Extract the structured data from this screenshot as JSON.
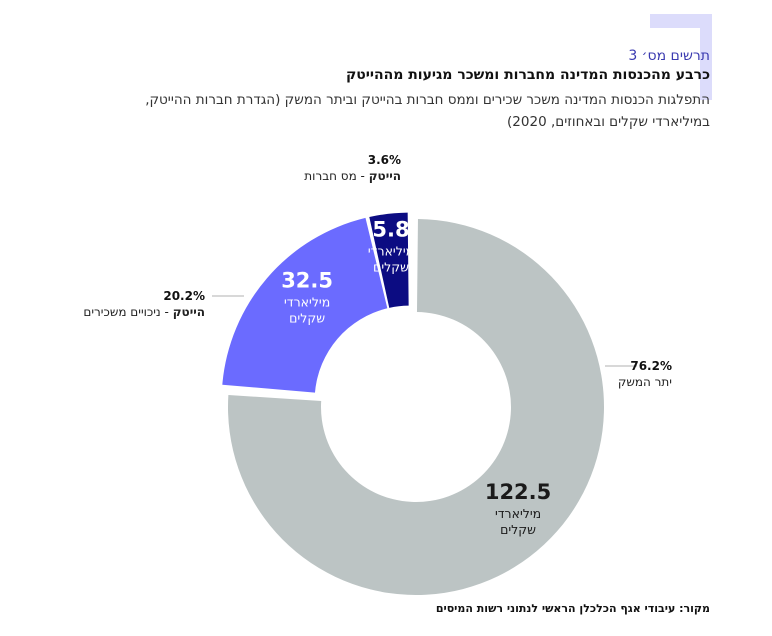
{
  "figure": {
    "number": "תרשים מס׳ 3",
    "title": "כרבע מהכנסות המדינה מחברות ומשכר מגיעות מההייטק",
    "subtitle_line1": "התפלגות הכנסות המדינה משכר שכירים וממס חברות בהייטק וביתר המשק (הגדרת חברות ההייטק,",
    "subtitle_line2": "במיליארדי שקלים ובאחוזים, 2020)",
    "source": "מקור: עיבודי אגף הכלכלן הראשי לנתוני רשות המיסים"
  },
  "colors": {
    "accent_deco": "#dcdcfb",
    "rest": "#bcc4c4",
    "hitech_wages": "#6b6bff",
    "hitech_tax": "#0c0c82"
  },
  "chart_data": {
    "type": "pie",
    "donut": true,
    "unit": "מיליארדי שקלים",
    "slices": [
      {
        "key": "rest",
        "value": 122.5,
        "value_label": "122.5",
        "pct_label": "76.2%",
        "label_bold": "",
        "label_rest": "יתר המשק",
        "unit_line1": "מיליארדי",
        "unit_line2": "שקלים",
        "color": "#bcc4c4",
        "exploded": false
      },
      {
        "key": "wages",
        "value": 32.5,
        "value_label": "32.5",
        "pct_label": "20.2%",
        "label_bold": "הייטק",
        "label_rest": " - ניכויים משכירים",
        "unit_line1": "מיליארדי",
        "unit_line2": "שקלים",
        "color": "#6b6bff",
        "exploded": true
      },
      {
        "key": "tax",
        "value": 5.8,
        "value_label": "5.8",
        "pct_label": "3.6%",
        "label_bold": "הייטק",
        "label_rest": " - מס חברות",
        "unit_line1": "מיליארדי",
        "unit_line2": "שקלים",
        "color": "#0c0c82",
        "exploded": true
      }
    ]
  }
}
